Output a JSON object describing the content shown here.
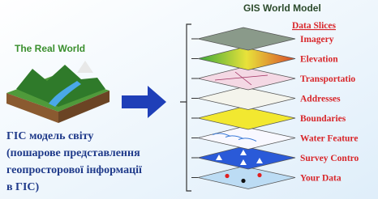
{
  "title": "GIS World Model",
  "real_world_label": "The Real World",
  "caption": [
    "ГІС модель світу",
    "(пошарове представлення",
    "геопросторової інформації",
    "в ГІС)"
  ],
  "layers_heading": "Data Slices",
  "layers": [
    "Imagery",
    "Elevation",
    "Transportatio",
    "Addresses",
    "Boundaries",
    "Water Feature",
    "Survey Contro",
    "Your Data"
  ]
}
